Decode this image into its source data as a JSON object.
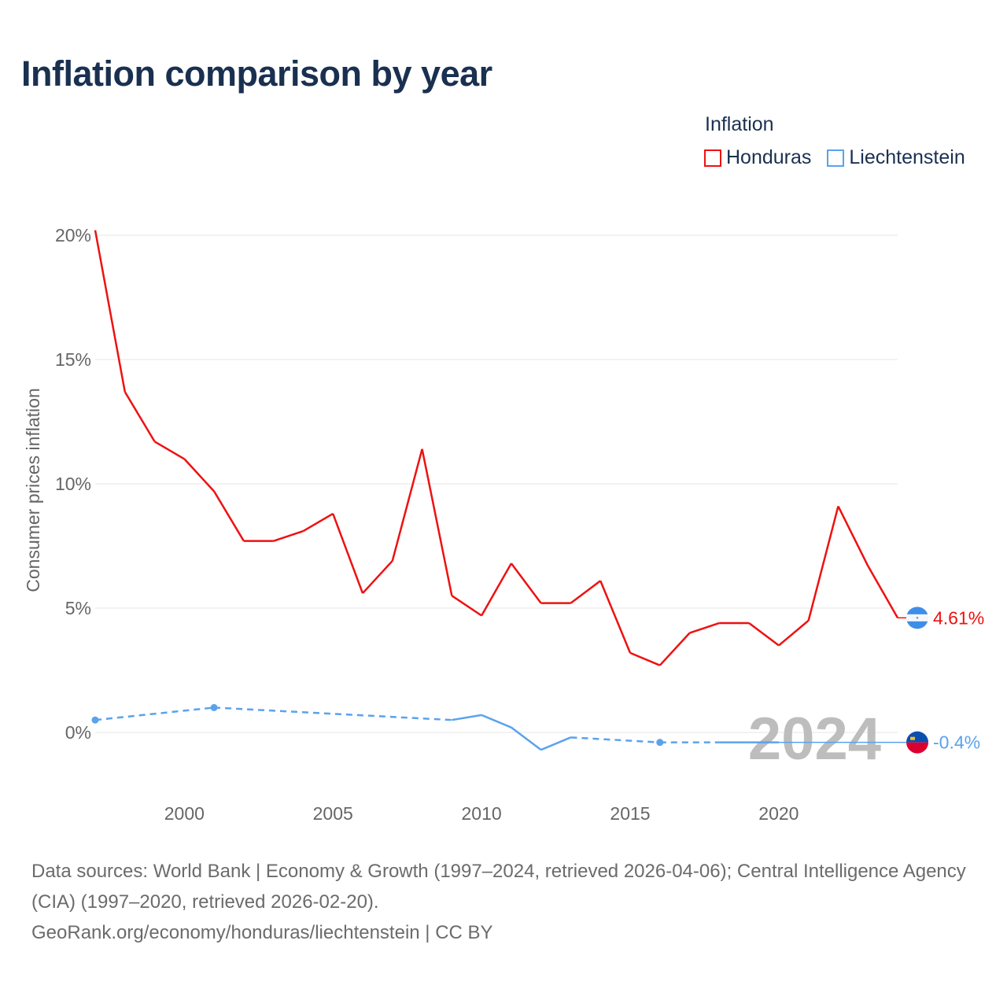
{
  "chart_data": {
    "type": "line",
    "title": "Inflation comparison by year",
    "legend_title": "Inflation",
    "legend_placement": "top-right",
    "ylabel": "Consumer prices inflation",
    "xlabel": "",
    "xlim": [
      1997,
      2024
    ],
    "ylim": [
      -2,
      20
    ],
    "y_ticks": [
      0,
      5,
      10,
      15,
      20
    ],
    "y_tick_labels": [
      "0%",
      "5%",
      "10%",
      "15%",
      "20%"
    ],
    "x_ticks": [
      2000,
      2005,
      2010,
      2015,
      2020
    ],
    "x_tick_labels": [
      "2000",
      "2005",
      "2010",
      "2015",
      "2020"
    ],
    "grid": true,
    "year_watermark": "2024",
    "series": [
      {
        "name": "Honduras",
        "color": "#ee1111",
        "end_label": "4.61%",
        "x": [
          1997,
          1998,
          1999,
          2000,
          2001,
          2002,
          2003,
          2004,
          2005,
          2006,
          2007,
          2008,
          2009,
          2010,
          2011,
          2012,
          2013,
          2014,
          2015,
          2016,
          2017,
          2018,
          2019,
          2020,
          2021,
          2022,
          2023,
          2024
        ],
        "values": [
          20.2,
          13.7,
          11.7,
          11.0,
          9.7,
          7.7,
          7.7,
          8.1,
          8.8,
          5.6,
          6.9,
          11.4,
          5.5,
          4.7,
          6.8,
          5.2,
          5.2,
          6.1,
          3.2,
          2.7,
          4.0,
          4.4,
          4.4,
          3.5,
          4.5,
          9.1,
          6.7,
          4.61
        ]
      },
      {
        "name": "Liechtenstein",
        "color": "#5aa2ee",
        "end_label": "-0.4%",
        "x": [
          1997,
          2001,
          2009,
          2010,
          2011,
          2012,
          2013,
          2016,
          2018,
          2019,
          2020
        ],
        "values": [
          0.5,
          1.0,
          0.5,
          0.7,
          0.2,
          -0.7,
          -0.2,
          -0.4,
          -0.4,
          -0.4,
          -0.4
        ]
      }
    ]
  },
  "footer": {
    "sources": "Data sources: World Bank | Economy & Growth (1997–2024, retrieved 2026-04-06); Central Intelligence Agency (CIA) (1997–2020, retrieved 2026-02-20).",
    "credit": "GeoRank.org/economy/honduras/liechtenstein | CC BY"
  }
}
